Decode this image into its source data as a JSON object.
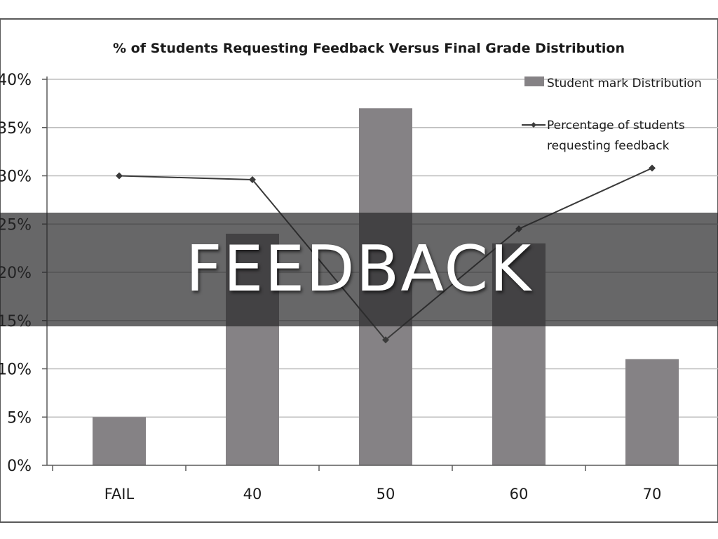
{
  "banner": {
    "text": "FEEDBACK"
  },
  "colors": {
    "bar": "#858285",
    "line": "#3a3a3a",
    "grid": "#bdbdbd",
    "frame": "#5a5a5a",
    "banner": "#262628"
  },
  "chart_data": {
    "type": "bar",
    "title": "% of Students Requesting Feedback  Versus Final Grade Distribution",
    "xlabel": "",
    "ylabel": "",
    "categories": [
      "FAIL",
      "40",
      "50",
      "60",
      "70"
    ],
    "ylim": [
      0,
      40
    ],
    "yticks": [
      0,
      5,
      10,
      15,
      20,
      25,
      30,
      35,
      40
    ],
    "ytick_labels": [
      "0%",
      "5%",
      "10%",
      "15%",
      "20%",
      "25%",
      "30%",
      "35%",
      "40%"
    ],
    "grid": true,
    "legend_position": "top-right",
    "series": [
      {
        "name": "Student mark Distribution",
        "kind": "bar",
        "values": [
          5,
          24,
          37,
          23,
          11
        ]
      },
      {
        "name": "Percentage of students requesting feedback",
        "kind": "line",
        "values": [
          30,
          29.6,
          13,
          24.5,
          30.8
        ]
      }
    ]
  }
}
